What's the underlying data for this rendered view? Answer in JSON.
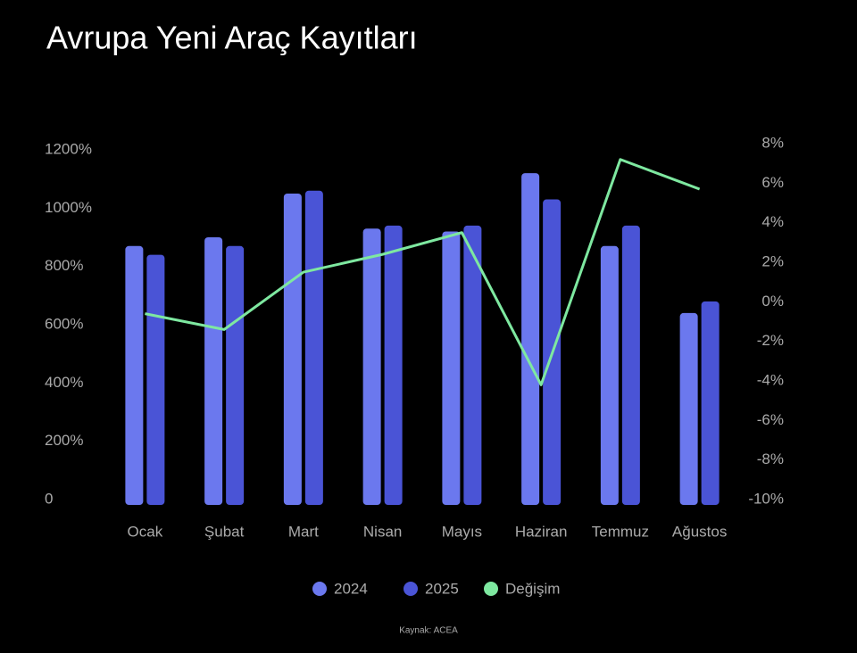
{
  "chart_data": {
    "type": "bar-line",
    "title": "Avrupa Yeni Araç Kayıtları",
    "source": "Kaynak: ACEA",
    "categories": [
      "Ocak",
      "Şubat",
      "Mart",
      "Nisan",
      "Mayıs",
      "Haziran",
      "Temmuz",
      "Ağustos"
    ],
    "series": [
      {
        "name": "2024",
        "type": "bar",
        "color": "#6b78ee",
        "values": [
          870,
          900,
          1050,
          930,
          920,
          1120,
          870,
          640
        ]
      },
      {
        "name": "2025",
        "type": "bar",
        "color": "#4a54d6",
        "values": [
          840,
          870,
          1060,
          940,
          940,
          1030,
          940,
          680
        ]
      },
      {
        "name": "Değişim",
        "type": "line",
        "axis": "y2",
        "color": "#7ee8a0",
        "values": [
          -0.6,
          -1.4,
          1.5,
          2.4,
          3.5,
          -4.2,
          7.2,
          5.7
        ]
      }
    ],
    "ylim": [
      0,
      1200
    ],
    "yticks": [
      0,
      {
        "value": 200,
        "label": "200%"
      },
      {
        "value": 400,
        "label": "400%"
      },
      {
        "value": 600,
        "label": "600%"
      },
      {
        "value": 800,
        "label": "800%"
      },
      {
        "value": 1000,
        "label": "1000%"
      },
      {
        "value": 1200,
        "label": "1200%"
      }
    ],
    "y2lim": [
      -10,
      8
    ],
    "y2ticks": [
      {
        "value": -10,
        "label": "-10%"
      },
      {
        "value": -8,
        "label": "-8%"
      },
      {
        "value": -6,
        "label": "-6%"
      },
      {
        "value": -4,
        "label": "-4%"
      },
      {
        "value": -2,
        "label": "-2%"
      },
      {
        "value": 0,
        "label": "0%"
      },
      {
        "value": 2,
        "label": "2%"
      },
      {
        "value": 4,
        "label": "4%"
      },
      {
        "value": 6,
        "label": "6%"
      },
      {
        "value": 8,
        "label": "8%"
      }
    ],
    "grid": false
  }
}
